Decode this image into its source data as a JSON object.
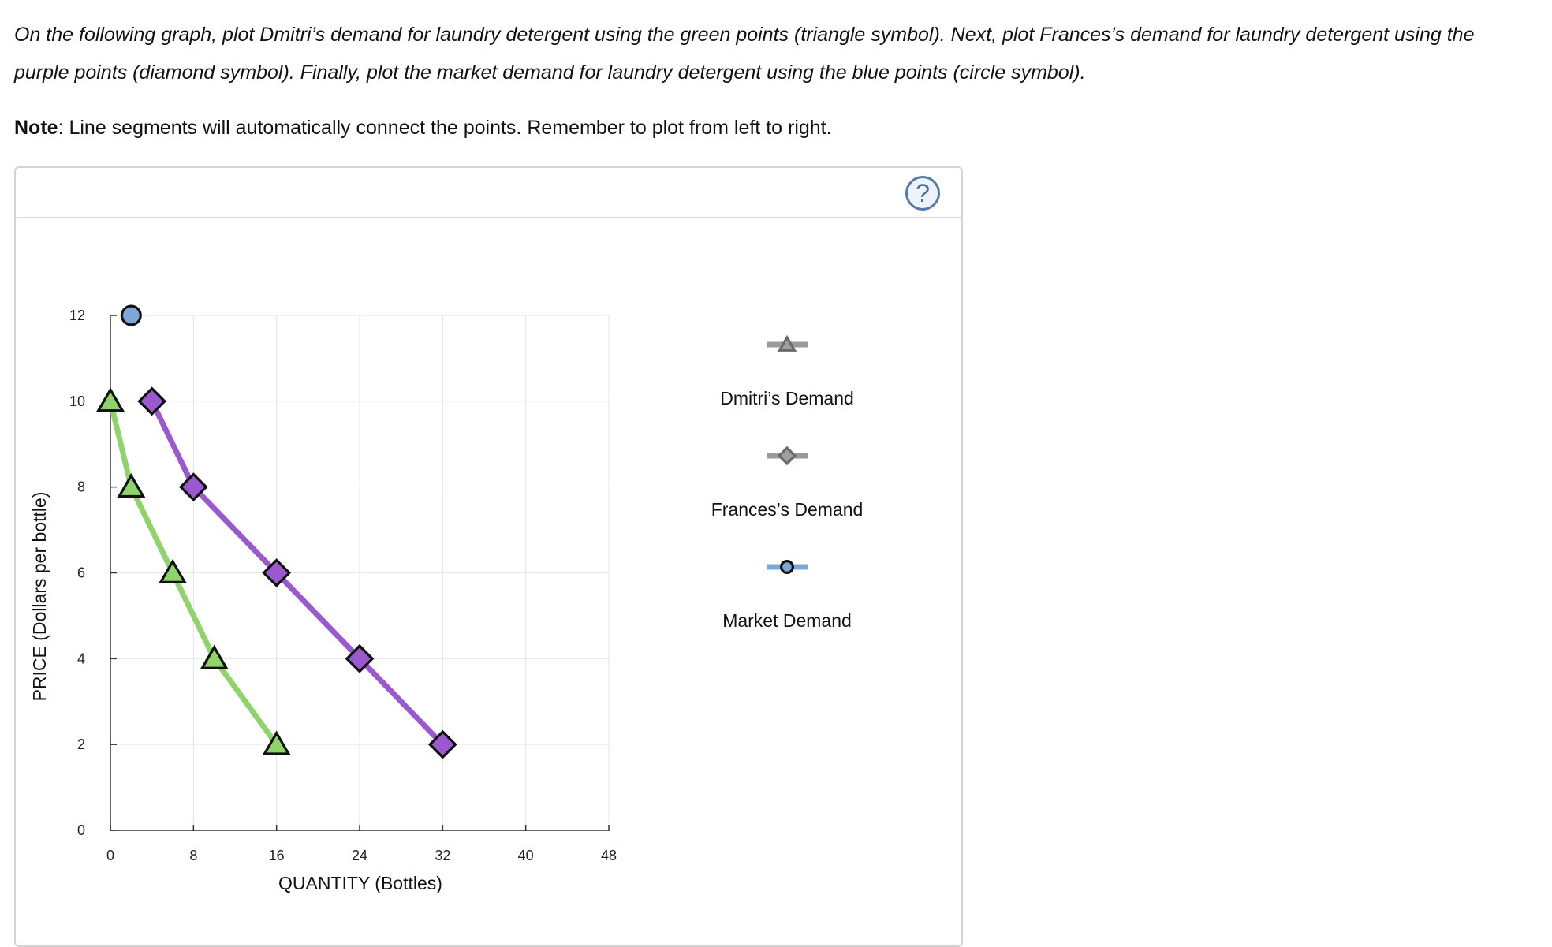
{
  "instructions": "On the following graph, plot Dmitri’s demand for laundry detergent using the green points (triangle symbol). Next, plot Frances’s demand for laundry detergent using the purple points (diamond symbol). Finally, plot the market demand for laundry detergent using the blue points (circle symbol).",
  "note": {
    "label": "Note",
    "text": ": Line segments will automatically connect the points. Remember to plot from left to right."
  },
  "help_icon": "question-mark-icon",
  "help_symbol": "?",
  "chart_data": {
    "type": "line",
    "xlabel": "QUANTITY (Bottles)",
    "ylabel": "PRICE (Dollars per bottle)",
    "xlim": [
      0,
      48
    ],
    "ylim": [
      0,
      12
    ],
    "xticks": [
      "0",
      "8",
      "16",
      "24",
      "32",
      "40",
      "48"
    ],
    "yticks": [
      "0",
      "2",
      "4",
      "6",
      "8",
      "10",
      "12"
    ],
    "grid": true,
    "legend_position": "right",
    "series": [
      {
        "name": "Dmitri’s Demand",
        "marker": "triangle",
        "color": "#8fd36b",
        "legend_color": "#9a9a9a",
        "points": [
          [
            0,
            10
          ],
          [
            2,
            8
          ],
          [
            6,
            6
          ],
          [
            10,
            4
          ],
          [
            16,
            2
          ]
        ]
      },
      {
        "name": "Frances’s Demand",
        "marker": "diamond",
        "color": "#9b59d0",
        "legend_color": "#9a9a9a",
        "points": [
          [
            4,
            10
          ],
          [
            8,
            8
          ],
          [
            16,
            6
          ],
          [
            24,
            4
          ],
          [
            32,
            2
          ]
        ]
      },
      {
        "name": "Market Demand",
        "marker": "circle",
        "color": "#7ea7d8",
        "legend_color": "#7ea7d8",
        "points": [
          [
            2,
            12
          ]
        ]
      }
    ]
  }
}
